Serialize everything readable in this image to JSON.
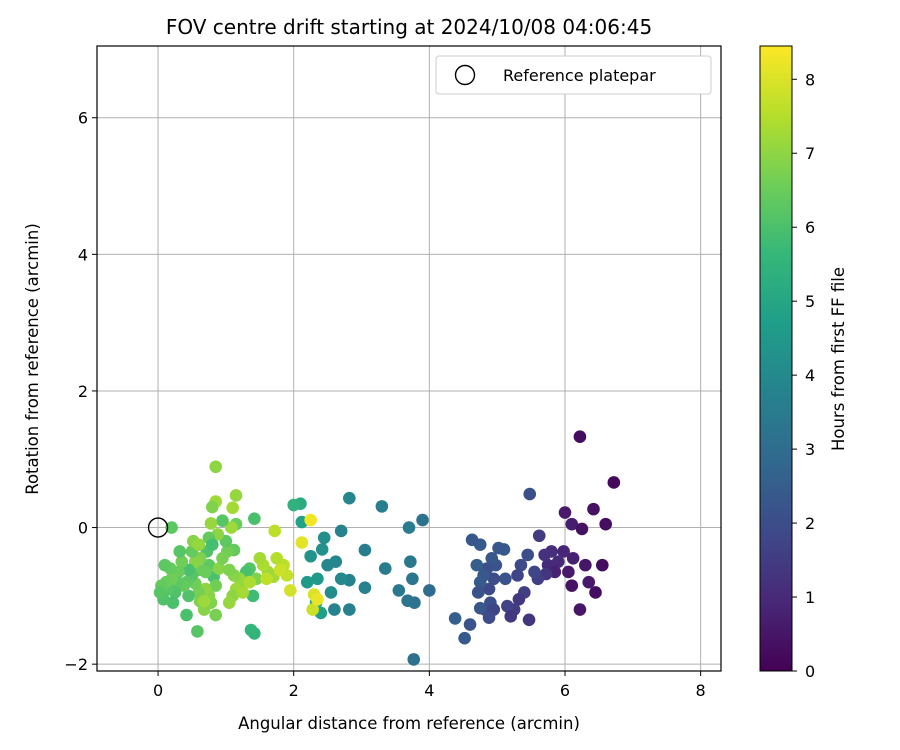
{
  "chart_data": {
    "type": "scatter",
    "title": "FOV centre drift starting at 2024/10/08 04:06:45",
    "xlabel": "Angular distance from reference (arcmin)",
    "ylabel": "Rotation from reference (arcmin)",
    "xlim": [
      -0.9,
      8.3
    ],
    "ylim": [
      -2.1,
      7.05
    ],
    "xticks": [
      0,
      2,
      4,
      6,
      8
    ],
    "xtick_labels": [
      "0",
      "2",
      "4",
      "6",
      "8"
    ],
    "yticks": [
      -2,
      0,
      2,
      4,
      6
    ],
    "ytick_labels": [
      "−2",
      "0",
      "2",
      "4",
      "6"
    ],
    "grid": true,
    "legend": {
      "placement": "top-right",
      "label": "Reference platepar",
      "marker": "open-circle"
    },
    "reference_point": {
      "x": 0,
      "y": 0
    },
    "colorbar": {
      "label": "Hours from first FF file",
      "range": [
        0,
        8.45
      ],
      "ticks": [
        0,
        1,
        2,
        3,
        4,
        5,
        6,
        7,
        8
      ],
      "tick_labels": [
        "0",
        "1",
        "2",
        "3",
        "4",
        "5",
        "6",
        "7",
        "8"
      ],
      "colormap": [
        "#440154",
        "#482878",
        "#3e4989",
        "#31688e",
        "#26828e",
        "#1f9e89",
        "#35b779",
        "#6ece58",
        "#b5de2b",
        "#fde725"
      ]
    },
    "series": [
      {
        "values_note": "",
        "points": [
          {
            "x": 6.22,
            "y": 1.33,
            "c": 0.3
          },
          {
            "x": 6.72,
            "y": 0.66,
            "c": 0.2
          },
          {
            "x": 6.42,
            "y": 0.27,
            "c": 0.4
          },
          {
            "x": 6.6,
            "y": 0.05,
            "c": 0.3
          },
          {
            "x": 6.0,
            "y": 0.22,
            "c": 0.6
          },
          {
            "x": 6.1,
            "y": 0.05,
            "c": 0.7
          },
          {
            "x": 6.25,
            "y": -0.02,
            "c": 0.4
          },
          {
            "x": 6.55,
            "y": -0.55,
            "c": 0.3
          },
          {
            "x": 6.3,
            "y": -0.55,
            "c": 0.5
          },
          {
            "x": 6.45,
            "y": -0.95,
            "c": 0.3
          },
          {
            "x": 6.35,
            "y": -0.8,
            "c": 0.6
          },
          {
            "x": 6.1,
            "y": -0.85,
            "c": 0.4
          },
          {
            "x": 6.22,
            "y": -1.2,
            "c": 0.5
          },
          {
            "x": 6.05,
            "y": -0.65,
            "c": 0.6
          },
          {
            "x": 6.12,
            "y": -0.45,
            "c": 0.8
          },
          {
            "x": 5.98,
            "y": -0.35,
            "c": 0.9
          },
          {
            "x": 5.9,
            "y": -0.5,
            "c": 1.0
          },
          {
            "x": 5.8,
            "y": -0.35,
            "c": 1.1
          },
          {
            "x": 5.75,
            "y": -0.55,
            "c": 1.0
          },
          {
            "x": 5.85,
            "y": -0.65,
            "c": 0.8
          },
          {
            "x": 5.7,
            "y": -0.4,
            "c": 1.2
          },
          {
            "x": 5.62,
            "y": -0.12,
            "c": 1.5
          },
          {
            "x": 5.72,
            "y": -0.68,
            "c": 1.3
          },
          {
            "x": 5.6,
            "y": -0.75,
            "c": 1.6
          },
          {
            "x": 5.55,
            "y": -0.65,
            "c": 1.8
          },
          {
            "x": 5.45,
            "y": -0.4,
            "c": 2.0
          },
          {
            "x": 5.48,
            "y": 0.49,
            "c": 2.1
          },
          {
            "x": 5.35,
            "y": -0.55,
            "c": 1.9
          },
          {
            "x": 5.3,
            "y": -0.7,
            "c": 1.7
          },
          {
            "x": 5.4,
            "y": -0.95,
            "c": 1.6
          },
          {
            "x": 5.32,
            "y": -1.05,
            "c": 1.4
          },
          {
            "x": 5.25,
            "y": -1.2,
            "c": 1.5
          },
          {
            "x": 5.47,
            "y": -1.35,
            "c": 1.3
          },
          {
            "x": 5.15,
            "y": -1.15,
            "c": 1.7
          },
          {
            "x": 5.2,
            "y": -1.3,
            "c": 1.4
          },
          {
            "x": 5.12,
            "y": -0.75,
            "c": 2.2
          },
          {
            "x": 5.1,
            "y": -0.32,
            "c": 2.4
          },
          {
            "x": 5.02,
            "y": -0.3,
            "c": 2.3
          },
          {
            "x": 4.98,
            "y": -0.55,
            "c": 2.2
          },
          {
            "x": 4.92,
            "y": -0.45,
            "c": 2.3
          },
          {
            "x": 4.85,
            "y": -0.6,
            "c": 2.1
          },
          {
            "x": 4.95,
            "y": -0.75,
            "c": 2.0
          },
          {
            "x": 4.88,
            "y": -0.9,
            "c": 1.9
          },
          {
            "x": 4.8,
            "y": -0.7,
            "c": 2.3
          },
          {
            "x": 4.75,
            "y": -0.8,
            "c": 2.4
          },
          {
            "x": 4.72,
            "y": -0.95,
            "c": 2.2
          },
          {
            "x": 4.9,
            "y": -1.1,
            "c": 2.1
          },
          {
            "x": 4.82,
            "y": -1.2,
            "c": 2.0
          },
          {
            "x": 4.95,
            "y": -1.2,
            "c": 1.8
          },
          {
            "x": 4.88,
            "y": -1.32,
            "c": 2.0
          },
          {
            "x": 4.75,
            "y": -1.18,
            "c": 2.3
          },
          {
            "x": 4.7,
            "y": -0.55,
            "c": 2.5
          },
          {
            "x": 4.75,
            "y": -0.25,
            "c": 2.4
          },
          {
            "x": 4.63,
            "y": -0.18,
            "c": 2.3
          },
          {
            "x": 4.6,
            "y": -1.42,
            "c": 2.2
          },
          {
            "x": 4.52,
            "y": -1.62,
            "c": 2.4
          },
          {
            "x": 4.38,
            "y": -1.33,
            "c": 2.5
          },
          {
            "x": 4.0,
            "y": -0.92,
            "c": 3.0
          },
          {
            "x": 3.9,
            "y": 0.11,
            "c": 3.2
          },
          {
            "x": 3.77,
            "y": -1.93,
            "c": 3.1
          },
          {
            "x": 3.75,
            "y": -0.75,
            "c": 3.3
          },
          {
            "x": 3.78,
            "y": -1.1,
            "c": 3.2
          },
          {
            "x": 3.68,
            "y": -1.07,
            "c": 3.3
          },
          {
            "x": 3.72,
            "y": -0.5,
            "c": 3.4
          },
          {
            "x": 3.7,
            "y": 0.0,
            "c": 3.5
          },
          {
            "x": 3.55,
            "y": -0.92,
            "c": 3.4
          },
          {
            "x": 3.3,
            "y": 0.31,
            "c": 3.6
          },
          {
            "x": 3.35,
            "y": -0.6,
            "c": 3.5
          },
          {
            "x": 3.05,
            "y": -0.33,
            "c": 3.6
          },
          {
            "x": 3.05,
            "y": -0.88,
            "c": 3.7
          },
          {
            "x": 2.82,
            "y": 0.43,
            "c": 3.9
          },
          {
            "x": 2.82,
            "y": -0.77,
            "c": 3.8
          },
          {
            "x": 2.82,
            "y": -1.2,
            "c": 3.7
          },
          {
            "x": 2.7,
            "y": -0.05,
            "c": 3.8
          },
          {
            "x": 2.7,
            "y": -0.75,
            "c": 4.0
          },
          {
            "x": 2.62,
            "y": -0.5,
            "c": 3.9
          },
          {
            "x": 2.6,
            "y": -1.2,
            "c": 3.8
          },
          {
            "x": 2.55,
            "y": -0.95,
            "c": 4.1
          },
          {
            "x": 2.5,
            "y": -0.55,
            "c": 3.9
          },
          {
            "x": 2.45,
            "y": -0.15,
            "c": 4.2
          },
          {
            "x": 2.42,
            "y": -0.32,
            "c": 4.3
          },
          {
            "x": 2.35,
            "y": -0.75,
            "c": 4.5
          },
          {
            "x": 2.25,
            "y": -0.42,
            "c": 4.4
          },
          {
            "x": 2.2,
            "y": -0.8,
            "c": 4.6
          },
          {
            "x": 2.12,
            "y": 0.08,
            "c": 4.8
          },
          {
            "x": 2.1,
            "y": 0.35,
            "c": 5.2
          },
          {
            "x": 2.0,
            "y": 0.33,
            "c": 5.4
          },
          {
            "x": 2.4,
            "y": -1.25,
            "c": 4.7
          },
          {
            "x": 2.33,
            "y": -1.1,
            "c": 5.0
          },
          {
            "x": 2.28,
            "y": -1.2,
            "c": 7.8
          },
          {
            "x": 2.3,
            "y": -0.98,
            "c": 8.0
          },
          {
            "x": 2.35,
            "y": -1.05,
            "c": 8.2
          },
          {
            "x": 2.25,
            "y": 0.11,
            "c": 8.3
          },
          {
            "x": 2.12,
            "y": -0.22,
            "c": 8.1
          },
          {
            "x": 1.95,
            "y": -0.92,
            "c": 7.9
          },
          {
            "x": 1.9,
            "y": -0.7,
            "c": 7.7
          },
          {
            "x": 1.85,
            "y": -0.55,
            "c": 7.6
          },
          {
            "x": 1.75,
            "y": -0.45,
            "c": 7.5
          },
          {
            "x": 1.72,
            "y": -0.05,
            "c": 7.6
          },
          {
            "x": 1.7,
            "y": -0.72,
            "c": 7.3
          },
          {
            "x": 1.62,
            "y": -0.65,
            "c": 7.2
          },
          {
            "x": 1.55,
            "y": -0.55,
            "c": 7.4
          },
          {
            "x": 1.5,
            "y": -0.45,
            "c": 7.3
          },
          {
            "x": 1.45,
            "y": -0.75,
            "c": 6.8
          },
          {
            "x": 1.42,
            "y": 0.13,
            "c": 6.0
          },
          {
            "x": 1.4,
            "y": -1.0,
            "c": 5.8
          },
          {
            "x": 1.42,
            "y": -1.55,
            "c": 5.5
          },
          {
            "x": 1.37,
            "y": -1.5,
            "c": 5.6
          },
          {
            "x": 1.35,
            "y": -0.6,
            "c": 6.2
          },
          {
            "x": 1.3,
            "y": -0.65,
            "c": 6.0
          },
          {
            "x": 1.25,
            "y": -0.8,
            "c": 7.0
          },
          {
            "x": 1.2,
            "y": -0.75,
            "c": 7.1
          },
          {
            "x": 1.15,
            "y": -0.9,
            "c": 7.2
          },
          {
            "x": 1.1,
            "y": -1.0,
            "c": 7.0
          },
          {
            "x": 1.05,
            "y": -1.1,
            "c": 7.1
          },
          {
            "x": 1.12,
            "y": -0.7,
            "c": 6.9
          },
          {
            "x": 1.15,
            "y": 0.05,
            "c": 6.5
          },
          {
            "x": 1.08,
            "y": 0.0,
            "c": 7.2
          },
          {
            "x": 1.1,
            "y": 0.29,
            "c": 7.3
          },
          {
            "x": 1.15,
            "y": 0.47,
            "c": 7.1
          },
          {
            "x": 1.12,
            "y": -0.33,
            "c": 6.4
          },
          {
            "x": 1.02,
            "y": -0.35,
            "c": 6.6
          },
          {
            "x": 1.0,
            "y": -0.2,
            "c": 6.3
          },
          {
            "x": 0.95,
            "y": 0.1,
            "c": 6.2
          },
          {
            "x": 0.88,
            "y": -0.1,
            "c": 7.0
          },
          {
            "x": 0.85,
            "y": 0.38,
            "c": 7.2
          },
          {
            "x": 0.85,
            "y": 0.89,
            "c": 7.0
          },
          {
            "x": 0.8,
            "y": 0.3,
            "c": 6.8
          },
          {
            "x": 0.78,
            "y": 0.06,
            "c": 7.1
          },
          {
            "x": 0.75,
            "y": -0.15,
            "c": 6.4
          },
          {
            "x": 0.72,
            "y": -0.35,
            "c": 6.1
          },
          {
            "x": 0.8,
            "y": -0.25,
            "c": 5.9
          },
          {
            "x": 0.82,
            "y": -0.72,
            "c": 6.0
          },
          {
            "x": 0.75,
            "y": -0.55,
            "c": 6.3
          },
          {
            "x": 0.7,
            "y": -0.65,
            "c": 6.5
          },
          {
            "x": 0.85,
            "y": -0.85,
            "c": 6.6
          },
          {
            "x": 0.85,
            "y": -1.28,
            "c": 6.7
          },
          {
            "x": 0.78,
            "y": -1.1,
            "c": 6.8
          },
          {
            "x": 0.75,
            "y": -1.0,
            "c": 6.9
          },
          {
            "x": 0.7,
            "y": -0.9,
            "c": 7.0
          },
          {
            "x": 0.68,
            "y": -1.2,
            "c": 6.9
          },
          {
            "x": 0.62,
            "y": -1.08,
            "c": 6.8
          },
          {
            "x": 0.6,
            "y": -0.95,
            "c": 6.7
          },
          {
            "x": 0.58,
            "y": -1.52,
            "c": 6.2
          },
          {
            "x": 0.55,
            "y": -0.82,
            "c": 6.6
          },
          {
            "x": 0.6,
            "y": -0.62,
            "c": 6.5
          },
          {
            "x": 0.62,
            "y": -0.45,
            "c": 6.8
          },
          {
            "x": 0.55,
            "y": -0.5,
            "c": 6.9
          },
          {
            "x": 0.5,
            "y": -0.35,
            "c": 6.4
          },
          {
            "x": 0.5,
            "y": -0.7,
            "c": 6.2
          },
          {
            "x": 0.45,
            "y": -0.62,
            "c": 6.0
          },
          {
            "x": 0.42,
            "y": -0.8,
            "c": 6.3
          },
          {
            "x": 0.45,
            "y": -1.0,
            "c": 6.1
          },
          {
            "x": 0.42,
            "y": -1.28,
            "c": 6.0
          },
          {
            "x": 0.38,
            "y": -0.85,
            "c": 6.4
          },
          {
            "x": 0.35,
            "y": -0.5,
            "c": 6.6
          },
          {
            "x": 0.32,
            "y": -0.35,
            "c": 6.2
          },
          {
            "x": 0.3,
            "y": -0.65,
            "c": 6.5
          },
          {
            "x": 0.28,
            "y": -0.8,
            "c": 6.3
          },
          {
            "x": 0.25,
            "y": -0.95,
            "c": 6.1
          },
          {
            "x": 0.22,
            "y": -1.1,
            "c": 6.0
          },
          {
            "x": 0.2,
            "y": 0.0,
            "c": 6.3
          },
          {
            "x": 0.2,
            "y": -0.75,
            "c": 6.6
          },
          {
            "x": 0.18,
            "y": -0.6,
            "c": 6.4
          },
          {
            "x": 0.15,
            "y": -0.9,
            "c": 6.2
          },
          {
            "x": 0.12,
            "y": -0.8,
            "c": 6.5
          },
          {
            "x": 0.1,
            "y": -0.55,
            "c": 6.3
          },
          {
            "x": 0.08,
            "y": -1.05,
            "c": 6.1
          },
          {
            "x": 0.05,
            "y": -0.85,
            "c": 6.4
          },
          {
            "x": 0.03,
            "y": -0.95,
            "c": 6.2
          },
          {
            "x": 0.52,
            "y": -0.2,
            "c": 6.9
          },
          {
            "x": 0.6,
            "y": -0.25,
            "c": 7.1
          },
          {
            "x": 0.68,
            "y": -1.08,
            "c": 7.2
          },
          {
            "x": 0.9,
            "y": -0.6,
            "c": 6.9
          },
          {
            "x": 1.25,
            "y": -0.95,
            "c": 7.3
          },
          {
            "x": 1.35,
            "y": -0.8,
            "c": 7.4
          },
          {
            "x": 1.6,
            "y": -0.75,
            "c": 7.6
          },
          {
            "x": 1.8,
            "y": -0.62,
            "c": 7.8
          },
          {
            "x": 0.95,
            "y": -0.45,
            "c": 6.7
          },
          {
            "x": 1.05,
            "y": -0.62,
            "c": 6.8
          }
        ]
      }
    ]
  }
}
